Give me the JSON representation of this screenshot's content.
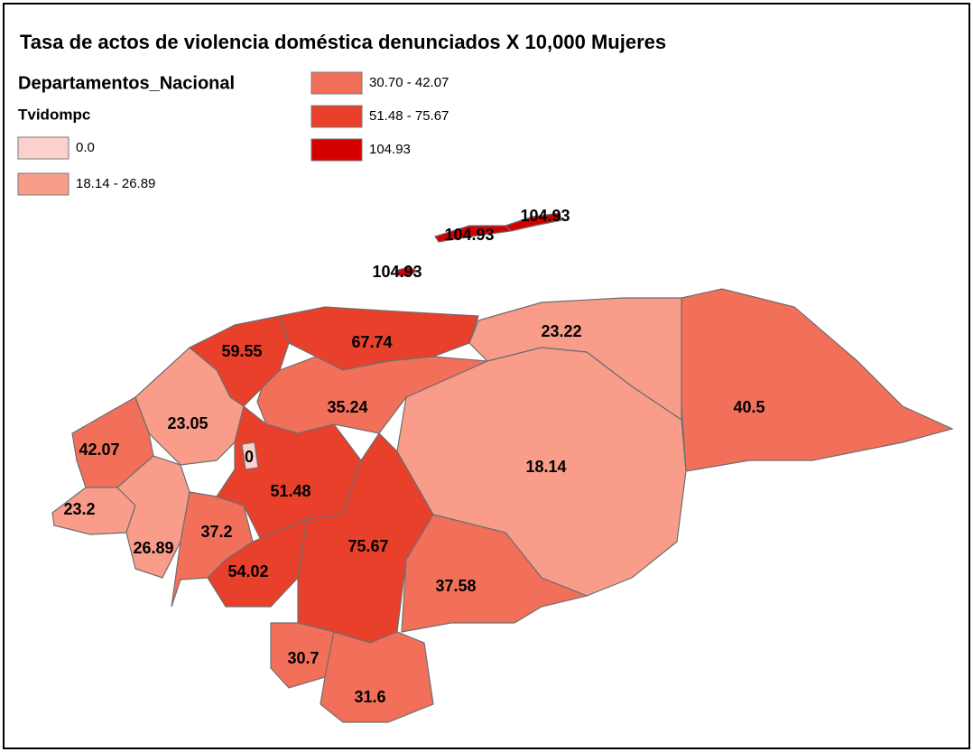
{
  "title": "Tasa de actos de violencia doméstica denunciados X 10,000 Mujeres",
  "legend": {
    "layer": "Departamentos_Nacional",
    "field": "Tvidompc",
    "classes": [
      {
        "label": "0.0",
        "color": "#fcd0cc"
      },
      {
        "label": "18.14 - 26.89",
        "color": "#f99c8a"
      },
      {
        "label": "30.70 - 42.07",
        "color": "#f2705a"
      },
      {
        "label": "51.48 - 75.67",
        "color": "#e8402a"
      },
      {
        "label": "104.93",
        "color": "#d40000"
      }
    ]
  },
  "regions": [
    {
      "label": "40.5",
      "color": "#f2705a"
    },
    {
      "label": "23.22",
      "color": "#f99c8a"
    },
    {
      "label": "18.14",
      "color": "#f99c8a"
    },
    {
      "label": "67.74",
      "color": "#e8402a"
    },
    {
      "label": "59.55",
      "color": "#e8402a"
    },
    {
      "label": "35.24",
      "color": "#f2705a"
    },
    {
      "label": "23.05",
      "color": "#f99c8a"
    },
    {
      "label": "42.07",
      "color": "#f2705a"
    },
    {
      "label": "23.2",
      "color": "#f99c8a"
    },
    {
      "label": "26.89",
      "color": "#f99c8a"
    },
    {
      "label": "37.2",
      "color": "#f2705a"
    },
    {
      "label": "51.48",
      "color": "#e8402a"
    },
    {
      "label": "54.02",
      "color": "#e8402a"
    },
    {
      "label": "75.67",
      "color": "#e8402a"
    },
    {
      "label": "37.58",
      "color": "#f2705a"
    },
    {
      "label": "30.7",
      "color": "#f2705a"
    },
    {
      "label": "31.6",
      "color": "#f2705a"
    },
    {
      "label": "104.93",
      "color": "#d40000"
    },
    {
      "label": "104.93",
      "color": "#d40000"
    },
    {
      "label": "104.93",
      "color": "#d40000"
    },
    {
      "label": "0",
      "color": "#fcd0cc"
    }
  ]
}
